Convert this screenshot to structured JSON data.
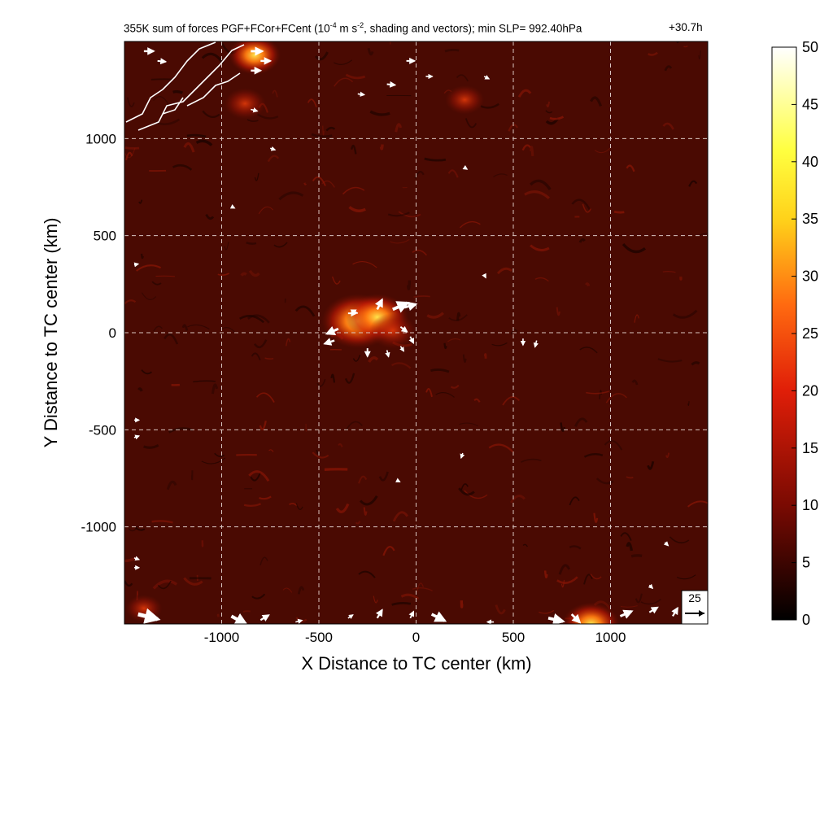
{
  "title_main": "355K sum of forces PGF+FCor+FCent (10",
  "title_exp": "-4",
  "title_mid": " m s",
  "title_exp2": "-2",
  "title_end": ", shading and vectors); min SLP= 992.40hPa",
  "time_label": "+30.7h",
  "colors": {
    "background": "#ffffff",
    "field_dark": "#2a0500",
    "field_mid": "#6e0f04",
    "vector": "#ffffff",
    "grid": "#d9c6c0",
    "coastline": "#ffffff"
  },
  "chart_data": {
    "type": "heatmap",
    "title": "355K sum of forces PGF+FCor+FCent (10^-4 m s^-2, shading and vectors); min SLP= 992.40hPa",
    "xlabel": "X Distance to TC center (km)",
    "ylabel": "Y Distance to TC center (km)",
    "xlim": [
      -1500,
      1500
    ],
    "ylim": [
      -1500,
      1500
    ],
    "x_ticks": [
      -1000,
      -500,
      0,
      500,
      1000
    ],
    "y_ticks": [
      -1000,
      -500,
      0,
      500,
      1000
    ],
    "x_tick_labels": [
      "-1000",
      "-500",
      "0",
      "500",
      "1000"
    ],
    "y_tick_labels": [
      "-1000",
      "-500",
      "0",
      "500",
      "1000"
    ],
    "grid": true,
    "colorbar": {
      "range": [
        0,
        50
      ],
      "ticks": [
        0,
        5,
        10,
        15,
        20,
        25,
        30,
        35,
        40,
        45,
        50
      ],
      "tick_labels": [
        "0",
        "5",
        "10",
        "15",
        "20",
        "25",
        "30",
        "35",
        "40",
        "45",
        "50"
      ],
      "colormap": "black-red-yellow-white"
    },
    "reference_vector": {
      "label": "25",
      "magnitude": 25
    },
    "hotspots": [
      {
        "x": -300,
        "y": 60,
        "magnitude": 28
      },
      {
        "x": -200,
        "y": 80,
        "magnitude": 24
      },
      {
        "x": -120,
        "y": 10,
        "magnitude": 18
      },
      {
        "x": -830,
        "y": 1430,
        "magnitude": 20
      },
      {
        "x": -880,
        "y": 1180,
        "magnitude": 16
      },
      {
        "x": 250,
        "y": 1200,
        "magnitude": 15
      },
      {
        "x": 900,
        "y": -1500,
        "magnitude": 22
      },
      {
        "x": -1400,
        "y": -1420,
        "magnitude": 14
      }
    ],
    "vectors": [
      {
        "x": -1400,
        "y": 1450,
        "u": 12,
        "v": 0
      },
      {
        "x": -1330,
        "y": 1400,
        "u": 10,
        "v": -1
      },
      {
        "x": -850,
        "y": 1450,
        "u": 14,
        "v": 0
      },
      {
        "x": -800,
        "y": 1400,
        "u": 12,
        "v": 0
      },
      {
        "x": -850,
        "y": 1350,
        "u": 12,
        "v": 0
      },
      {
        "x": -850,
        "y": 1150,
        "u": 8,
        "v": -2
      },
      {
        "x": -750,
        "y": 950,
        "u": 6,
        "v": -2
      },
      {
        "x": -300,
        "y": 1230,
        "u": 8,
        "v": -1
      },
      {
        "x": -150,
        "y": 1280,
        "u": 10,
        "v": -1
      },
      {
        "x": -50,
        "y": 1400,
        "u": 10,
        "v": 0
      },
      {
        "x": 50,
        "y": 1320,
        "u": 8,
        "v": 0
      },
      {
        "x": 350,
        "y": 1320,
        "u": 6,
        "v": -3
      },
      {
        "x": 250,
        "y": 850,
        "u": 3,
        "v": -2
      },
      {
        "x": -950,
        "y": 650,
        "u": 4,
        "v": -2
      },
      {
        "x": -1450,
        "y": 350,
        "u": 5,
        "v": 1
      },
      {
        "x": -350,
        "y": 100,
        "u": 10,
        "v": 0
      },
      {
        "x": -400,
        "y": 20,
        "u": -14,
        "v": -6
      },
      {
        "x": -420,
        "y": -40,
        "u": -12,
        "v": -4
      },
      {
        "x": -300,
        "y": 100,
        "u": -8,
        "v": 4
      },
      {
        "x": -200,
        "y": 120,
        "u": 6,
        "v": 12
      },
      {
        "x": -120,
        "y": 120,
        "u": 18,
        "v": 8
      },
      {
        "x": -60,
        "y": 130,
        "u": 14,
        "v": 4
      },
      {
        "x": -80,
        "y": 30,
        "u": 8,
        "v": -6
      },
      {
        "x": -30,
        "y": -20,
        "u": 4,
        "v": -8
      },
      {
        "x": -250,
        "y": -80,
        "u": 0,
        "v": -10
      },
      {
        "x": -150,
        "y": -90,
        "u": 2,
        "v": -8
      },
      {
        "x": -80,
        "y": -70,
        "u": 4,
        "v": -6
      },
      {
        "x": 350,
        "y": 300,
        "u": 2,
        "v": -4
      },
      {
        "x": 550,
        "y": -30,
        "u": 0,
        "v": -8
      },
      {
        "x": 620,
        "y": -40,
        "u": -2,
        "v": -8
      },
      {
        "x": 240,
        "y": -620,
        "u": -2,
        "v": -6
      },
      {
        "x": -100,
        "y": -760,
        "u": 4,
        "v": -2
      },
      {
        "x": 1280,
        "y": -1080,
        "u": 4,
        "v": -4
      },
      {
        "x": 1200,
        "y": -1300,
        "u": 4,
        "v": -4
      },
      {
        "x": -1450,
        "y": -450,
        "u": 6,
        "v": 0
      },
      {
        "x": -1450,
        "y": -540,
        "u": 6,
        "v": 2
      },
      {
        "x": -1450,
        "y": -1160,
        "u": 6,
        "v": -2
      },
      {
        "x": -1450,
        "y": -1210,
        "u": 6,
        "v": 0
      },
      {
        "x": -1430,
        "y": -1450,
        "u": 24,
        "v": -6
      },
      {
        "x": -950,
        "y": -1460,
        "u": 18,
        "v": -10
      },
      {
        "x": -800,
        "y": -1480,
        "u": 10,
        "v": 6
      },
      {
        "x": -620,
        "y": -1490,
        "u": 8,
        "v": 2
      },
      {
        "x": -350,
        "y": -1470,
        "u": 6,
        "v": 4
      },
      {
        "x": -200,
        "y": -1470,
        "u": 6,
        "v": 10
      },
      {
        "x": -30,
        "y": -1470,
        "u": 4,
        "v": 8
      },
      {
        "x": 80,
        "y": -1450,
        "u": 16,
        "v": -8
      },
      {
        "x": 400,
        "y": -1490,
        "u": -8,
        "v": 0
      },
      {
        "x": 680,
        "y": -1470,
        "u": 18,
        "v": -4
      },
      {
        "x": 800,
        "y": -1450,
        "u": 10,
        "v": -10
      },
      {
        "x": 1050,
        "y": -1460,
        "u": 14,
        "v": 6
      },
      {
        "x": 1200,
        "y": -1440,
        "u": 10,
        "v": 6
      },
      {
        "x": 1320,
        "y": -1460,
        "u": 6,
        "v": 10
      }
    ]
  }
}
